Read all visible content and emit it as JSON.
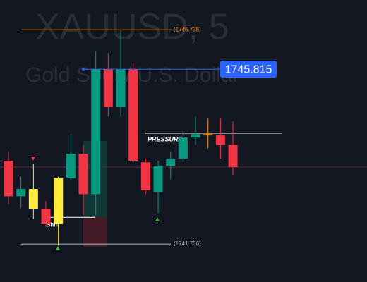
{
  "chart_data": {
    "type": "candlestick",
    "watermark_title": "XAUUSD, 5",
    "watermark_subtitle": "Gold Spot / U.S. Dollar",
    "ylim": [
      1740.85,
      1747.43
    ],
    "candles": [
      {
        "open": 1743.68,
        "high": 1743.89,
        "low": 1742.66,
        "close": 1742.85,
        "color": "#f23645"
      },
      {
        "open": 1742.85,
        "high": 1743.31,
        "low": 1742.57,
        "close": 1743.02,
        "color": "#089981"
      },
      {
        "open": 1743.02,
        "high": 1743.61,
        "low": 1742.33,
        "close": 1742.56,
        "color": "#ffeb3b"
      },
      {
        "open": 1742.56,
        "high": 1742.74,
        "low": 1742.13,
        "close": 1742.2,
        "color": "#f23645"
      },
      {
        "open": 1742.2,
        "high": 1743.31,
        "low": 1741.7,
        "close": 1743.27,
        "color": "#ffeb3b"
      },
      {
        "open": 1743.27,
        "high": 1744.3,
        "low": 1743.23,
        "close": 1743.84,
        "color": "#089981"
      },
      {
        "open": 1743.84,
        "high": 1744.05,
        "low": 1742.41,
        "close": 1742.9,
        "color": "#f23645"
      },
      {
        "open": 1742.9,
        "high": 1746.24,
        "low": 1742.41,
        "close": 1745.81,
        "color": "#089981"
      },
      {
        "open": 1745.81,
        "high": 1746.19,
        "low": 1744.71,
        "close": 1744.93,
        "color": "#f23645"
      },
      {
        "open": 1744.93,
        "high": 1746.735,
        "low": 1744.71,
        "close": 1745.81,
        "color": "#089981"
      },
      {
        "open": 1745.81,
        "high": 1745.95,
        "low": 1743.64,
        "close": 1743.68,
        "color": "#f23645"
      },
      {
        "open": 1743.64,
        "high": 1743.73,
        "low": 1742.9,
        "close": 1742.99,
        "color": "#f23645"
      },
      {
        "open": 1742.95,
        "high": 1743.68,
        "low": 1742.46,
        "close": 1743.56,
        "color": "#089981"
      },
      {
        "open": 1743.56,
        "high": 1743.89,
        "low": 1743.23,
        "close": 1743.73,
        "color": "#089981"
      },
      {
        "open": 1743.73,
        "high": 1744.38,
        "low": 1743.64,
        "close": 1744.22,
        "color": "#089981"
      },
      {
        "open": 1744.22,
        "high": 1744.71,
        "low": 1744.05,
        "close": 1744.3,
        "color": "#089981"
      },
      {
        "open": 1744.3,
        "high": 1744.66,
        "low": 1743.97,
        "close": 1744.27,
        "color": "#ff9800"
      },
      {
        "open": 1744.27,
        "high": 1744.66,
        "low": 1743.73,
        "close": 1744.05,
        "color": "#f23645"
      },
      {
        "open": 1744.05,
        "high": 1744.6,
        "low": 1743.35,
        "close": 1743.53,
        "color": "#f23645"
      }
    ],
    "levels": [
      {
        "value": 1746.735,
        "label": "(1746.735)",
        "color": "#ff9800"
      },
      {
        "value": 1741.736,
        "label": "(1741.736)",
        "color": "#b2b5be"
      }
    ],
    "current_price": 1745.815,
    "pressure": {
      "value": 1744.32,
      "label": "PRESSURE"
    },
    "shift": {
      "value": 1742.36,
      "label": "Shift"
    }
  }
}
